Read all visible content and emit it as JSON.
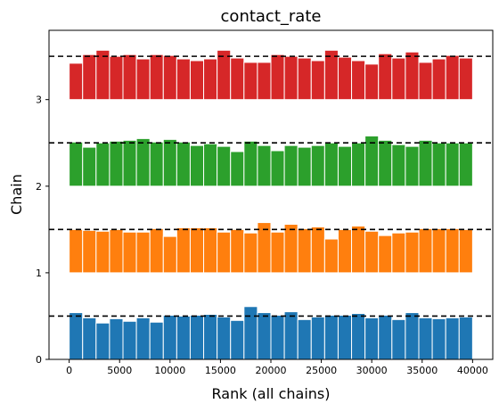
{
  "chart_data": {
    "type": "bar",
    "title": "contact_rate",
    "xlabel": "Rank (all chains)",
    "ylabel": "Chain",
    "xlim": [
      -2000,
      42000
    ],
    "ylim": [
      0,
      3.8
    ],
    "x_ticks": [
      0,
      5000,
      10000,
      15000,
      20000,
      25000,
      30000,
      35000,
      40000
    ],
    "y_ticks": [
      0,
      1,
      2,
      3
    ],
    "bin_width": 1333.33,
    "reference_line": "dashed",
    "grid": false,
    "series": [
      {
        "name": "0",
        "offset": 0,
        "reference": 0.5,
        "color": "#1f77b4",
        "values": [
          0.54,
          0.48,
          0.42,
          0.47,
          0.44,
          0.48,
          0.43,
          0.51,
          0.5,
          0.51,
          0.52,
          0.49,
          0.45,
          0.61,
          0.54,
          0.51,
          0.55,
          0.46,
          0.49,
          0.51,
          0.51,
          0.53,
          0.48,
          0.51,
          0.46,
          0.54,
          0.48,
          0.47,
          0.48,
          0.49
        ]
      },
      {
        "name": "1",
        "offset": 1,
        "reference": 1.5,
        "color": "#ff7f0e",
        "values": [
          1.5,
          1.49,
          1.48,
          1.5,
          1.47,
          1.47,
          1.51,
          1.42,
          1.52,
          1.52,
          1.52,
          1.47,
          1.5,
          1.46,
          1.58,
          1.47,
          1.56,
          1.51,
          1.53,
          1.39,
          1.5,
          1.54,
          1.48,
          1.43,
          1.46,
          1.47,
          1.51,
          1.51,
          1.51,
          1.5
        ]
      },
      {
        "name": "2",
        "offset": 2,
        "reference": 2.5,
        "color": "#2ca02c",
        "values": [
          2.51,
          2.45,
          2.5,
          2.52,
          2.53,
          2.55,
          2.51,
          2.54,
          2.51,
          2.47,
          2.49,
          2.46,
          2.4,
          2.52,
          2.47,
          2.41,
          2.47,
          2.45,
          2.47,
          2.5,
          2.46,
          2.5,
          2.58,
          2.53,
          2.48,
          2.46,
          2.53,
          2.5,
          2.5,
          2.5
        ]
      },
      {
        "name": "3",
        "offset": 3,
        "reference": 3.5,
        "color": "#d62728",
        "values": [
          3.42,
          3.52,
          3.57,
          3.5,
          3.52,
          3.47,
          3.52,
          3.51,
          3.47,
          3.45,
          3.47,
          3.57,
          3.48,
          3.43,
          3.43,
          3.52,
          3.5,
          3.48,
          3.45,
          3.57,
          3.49,
          3.45,
          3.41,
          3.53,
          3.48,
          3.55,
          3.43,
          3.47,
          3.51,
          3.48
        ]
      }
    ]
  }
}
